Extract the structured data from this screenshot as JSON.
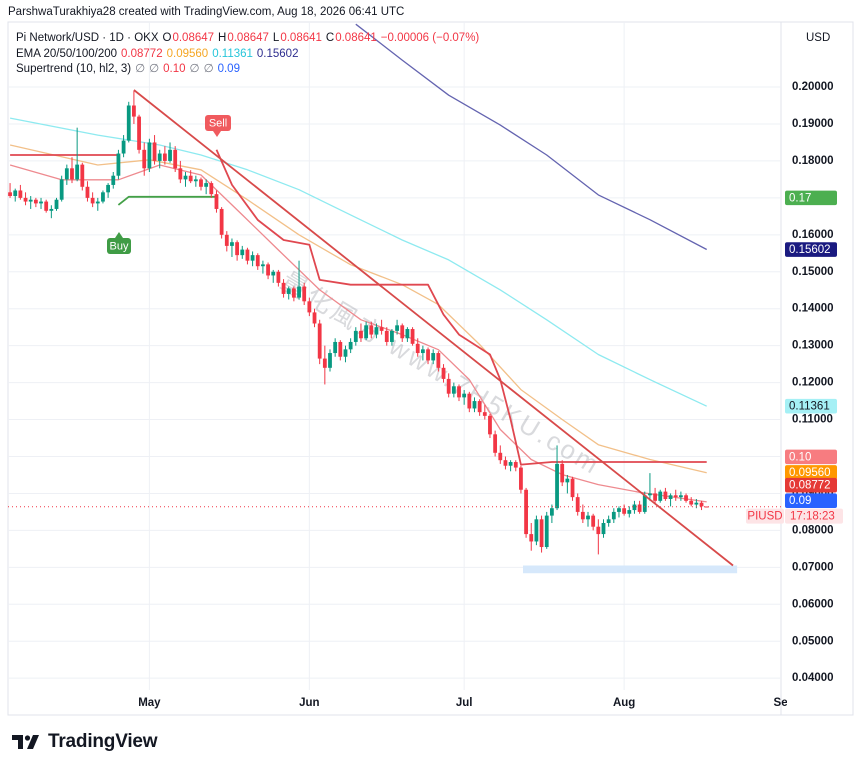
{
  "credit": "ParshwaTurakhiya28 created with TradingView.com, Aug 18, 2026 06:41 UTC",
  "brand": "TradingView",
  "chart_data": {
    "type": "candlestick",
    "symbol": "Pi Network/USD · 1D · OKX",
    "ohlc_keys": [
      "O",
      "H",
      "L",
      "C"
    ],
    "change": "−0.00006 (−0.07%)",
    "currency": "USD",
    "up_color": "#089981",
    "down_color": "#f23645",
    "ohlc": [
      [
        0.1715,
        0.174,
        0.17,
        0.1705
      ],
      [
        0.1705,
        0.1725,
        0.169,
        0.172
      ],
      [
        0.172,
        0.1735,
        0.1695,
        0.17
      ],
      [
        0.17,
        0.1715,
        0.168,
        0.169
      ],
      [
        0.169,
        0.1705,
        0.167,
        0.1695
      ],
      [
        0.1695,
        0.17,
        0.1675,
        0.1685
      ],
      [
        0.1685,
        0.17,
        0.167,
        0.169
      ],
      [
        0.169,
        0.1695,
        0.166,
        0.1665
      ],
      [
        0.1665,
        0.168,
        0.1645,
        0.167
      ],
      [
        0.167,
        0.17,
        0.1665,
        0.1695
      ],
      [
        0.1695,
        0.176,
        0.169,
        0.175
      ],
      [
        0.175,
        0.179,
        0.1735,
        0.178
      ],
      [
        0.178,
        0.181,
        0.174,
        0.175
      ],
      [
        0.175,
        0.189,
        0.1745,
        0.179
      ],
      [
        0.179,
        0.1795,
        0.172,
        0.173
      ],
      [
        0.173,
        0.1745,
        0.169,
        0.17
      ],
      [
        0.17,
        0.1715,
        0.1675,
        0.1685
      ],
      [
        0.1685,
        0.17,
        0.1665,
        0.169
      ],
      [
        0.169,
        0.172,
        0.1685,
        0.1715
      ],
      [
        0.1715,
        0.174,
        0.17,
        0.1735
      ],
      [
        0.1735,
        0.177,
        0.1725,
        0.176
      ],
      [
        0.176,
        0.183,
        0.175,
        0.182
      ],
      [
        0.182,
        0.187,
        0.181,
        0.1855
      ],
      [
        0.1855,
        0.196,
        0.185,
        0.195
      ],
      [
        0.195,
        0.199,
        0.19,
        0.192
      ],
      [
        0.192,
        0.1925,
        0.182,
        0.183
      ],
      [
        0.183,
        0.185,
        0.176,
        0.178
      ],
      [
        0.178,
        0.186,
        0.177,
        0.185
      ],
      [
        0.185,
        0.187,
        0.179,
        0.18
      ],
      [
        0.18,
        0.183,
        0.178,
        0.182
      ],
      [
        0.182,
        0.184,
        0.179,
        0.18
      ],
      [
        0.18,
        0.185,
        0.1795,
        0.183
      ],
      [
        0.183,
        0.184,
        0.177,
        0.178
      ],
      [
        0.178,
        0.18,
        0.174,
        0.175
      ],
      [
        0.175,
        0.177,
        0.173,
        0.176
      ],
      [
        0.176,
        0.1775,
        0.174,
        0.1745
      ],
      [
        0.1745,
        0.176,
        0.173,
        0.175
      ],
      [
        0.175,
        0.1755,
        0.172,
        0.173
      ],
      [
        0.173,
        0.175,
        0.171,
        0.174
      ],
      [
        0.174,
        0.1745,
        0.17,
        0.171
      ],
      [
        0.171,
        0.172,
        0.166,
        0.167
      ],
      [
        0.167,
        0.1675,
        0.159,
        0.16
      ],
      [
        0.16,
        0.161,
        0.1555,
        0.157
      ],
      [
        0.157,
        0.159,
        0.154,
        0.158
      ],
      [
        0.158,
        0.1585,
        0.153,
        0.1545
      ],
      [
        0.1545,
        0.157,
        0.1535,
        0.156
      ],
      [
        0.156,
        0.1565,
        0.152,
        0.153
      ],
      [
        0.153,
        0.1555,
        0.1515,
        0.1545
      ],
      [
        0.1545,
        0.155,
        0.1505,
        0.1515
      ],
      [
        0.1515,
        0.153,
        0.1495,
        0.152
      ],
      [
        0.152,
        0.1525,
        0.148,
        0.149
      ],
      [
        0.149,
        0.1505,
        0.147,
        0.15
      ],
      [
        0.15,
        0.1505,
        0.146,
        0.147
      ],
      [
        0.147,
        0.148,
        0.143,
        0.144
      ],
      [
        0.144,
        0.146,
        0.1425,
        0.1455
      ],
      [
        0.1455,
        0.146,
        0.142,
        0.143
      ],
      [
        0.143,
        0.153,
        0.1425,
        0.146
      ],
      [
        0.146,
        0.147,
        0.141,
        0.142
      ],
      [
        0.142,
        0.143,
        0.138,
        0.139
      ],
      [
        0.139,
        0.14,
        0.135,
        0.136
      ],
      [
        0.136,
        0.137,
        0.125,
        0.1265
      ],
      [
        0.1265,
        0.13,
        0.1195,
        0.124
      ],
      [
        0.124,
        0.129,
        0.123,
        0.128
      ],
      [
        0.128,
        0.132,
        0.127,
        0.131
      ],
      [
        0.131,
        0.1315,
        0.126,
        0.127
      ],
      [
        0.127,
        0.13,
        0.1255,
        0.129
      ],
      [
        0.129,
        0.132,
        0.128,
        0.131
      ],
      [
        0.131,
        0.135,
        0.13,
        0.134
      ],
      [
        0.134,
        0.136,
        0.131,
        0.132
      ],
      [
        0.132,
        0.1365,
        0.1315,
        0.1355
      ],
      [
        0.1355,
        0.1365,
        0.132,
        0.133
      ],
      [
        0.133,
        0.136,
        0.132,
        0.135
      ],
      [
        0.135,
        0.137,
        0.133,
        0.134
      ],
      [
        0.134,
        0.135,
        0.13,
        0.131
      ],
      [
        0.131,
        0.1345,
        0.13,
        0.134
      ],
      [
        0.134,
        0.137,
        0.133,
        0.1355
      ],
      [
        0.1355,
        0.136,
        0.131,
        0.132
      ],
      [
        0.132,
        0.135,
        0.131,
        0.1345
      ],
      [
        0.1345,
        0.135,
        0.13,
        0.1305
      ],
      [
        0.1305,
        0.132,
        0.127,
        0.128
      ],
      [
        0.128,
        0.13,
        0.126,
        0.129
      ],
      [
        0.129,
        0.1295,
        0.125,
        0.126
      ],
      [
        0.126,
        0.129,
        0.125,
        0.128
      ],
      [
        0.128,
        0.1285,
        0.123,
        0.124
      ],
      [
        0.124,
        0.125,
        0.12,
        0.121
      ],
      [
        0.121,
        0.1225,
        0.116,
        0.117
      ],
      [
        0.117,
        0.12,
        0.116,
        0.119
      ],
      [
        0.119,
        0.1195,
        0.115,
        0.116
      ],
      [
        0.116,
        0.118,
        0.114,
        0.117
      ],
      [
        0.117,
        0.1175,
        0.112,
        0.113
      ],
      [
        0.113,
        0.116,
        0.112,
        0.115
      ],
      [
        0.115,
        0.1155,
        0.111,
        0.112
      ],
      [
        0.112,
        0.114,
        0.11,
        0.111
      ],
      [
        0.111,
        0.1115,
        0.105,
        0.106
      ],
      [
        0.106,
        0.107,
        0.1,
        0.101
      ],
      [
        0.101,
        0.103,
        0.098,
        0.099
      ],
      [
        0.099,
        0.1,
        0.0965,
        0.0975
      ],
      [
        0.0975,
        0.099,
        0.096,
        0.0985
      ],
      [
        0.0985,
        0.099,
        0.096,
        0.097
      ],
      [
        0.097,
        0.0975,
        0.09,
        0.091
      ],
      [
        0.091,
        0.0915,
        0.078,
        0.079
      ],
      [
        0.079,
        0.082,
        0.0745,
        0.077
      ],
      [
        0.077,
        0.084,
        0.076,
        0.083
      ],
      [
        0.083,
        0.084,
        0.074,
        0.0755
      ],
      [
        0.0755,
        0.085,
        0.075,
        0.084
      ],
      [
        0.084,
        0.087,
        0.082,
        0.086
      ],
      [
        0.086,
        0.103,
        0.0855,
        0.098
      ],
      [
        0.098,
        0.099,
        0.092,
        0.093
      ],
      [
        0.093,
        0.095,
        0.09,
        0.094
      ],
      [
        0.094,
        0.0945,
        0.088,
        0.089
      ],
      [
        0.089,
        0.09,
        0.084,
        0.085
      ],
      [
        0.085,
        0.087,
        0.082,
        0.083
      ],
      [
        0.083,
        0.085,
        0.081,
        0.084
      ],
      [
        0.084,
        0.0845,
        0.08,
        0.081
      ],
      [
        0.081,
        0.083,
        0.0735,
        0.079
      ],
      [
        0.079,
        0.083,
        0.078,
        0.082
      ],
      [
        0.082,
        0.084,
        0.081,
        0.083
      ],
      [
        0.083,
        0.086,
        0.082,
        0.085
      ],
      [
        0.085,
        0.0865,
        0.0835,
        0.086
      ],
      [
        0.086,
        0.087,
        0.084,
        0.0845
      ],
      [
        0.0845,
        0.0865,
        0.0835,
        0.0855
      ],
      [
        0.0855,
        0.088,
        0.0845,
        0.087
      ],
      [
        0.087,
        0.088,
        0.0845,
        0.085
      ],
      [
        0.085,
        0.0905,
        0.0845,
        0.0895
      ],
      [
        0.0895,
        0.0955,
        0.088,
        0.09
      ],
      [
        0.09,
        0.0915,
        0.087,
        0.088
      ],
      [
        0.088,
        0.091,
        0.0875,
        0.0905
      ],
      [
        0.0905,
        0.0915,
        0.088,
        0.0885
      ],
      [
        0.0885,
        0.09,
        0.0865,
        0.0895
      ],
      [
        0.0895,
        0.091,
        0.088,
        0.089
      ],
      [
        0.089,
        0.0905,
        0.088,
        0.0895
      ],
      [
        0.0895,
        0.09,
        0.0875,
        0.088
      ],
      [
        0.088,
        0.089,
        0.0865,
        0.087
      ],
      [
        0.087,
        0.0885,
        0.086,
        0.0875
      ],
      [
        0.0875,
        0.088,
        0.0855,
        0.0865
      ],
      [
        0.08647,
        0.08647,
        0.08641,
        0.08641
      ]
    ],
    "xlim": [
      -0.4,
      149.4
    ],
    "xticks": [
      {
        "value": 27,
        "label": "May"
      },
      {
        "value": 58,
        "label": "Jun"
      },
      {
        "value": 88,
        "label": "Jul"
      },
      {
        "value": 119,
        "label": "Aug"
      },
      {
        "value": 150,
        "label": "Sep"
      }
    ],
    "ylim": [
      0.0368,
      0.2176
    ],
    "yticks": [
      {
        "value": 0.2,
        "label": "0.20000"
      },
      {
        "value": 0.19,
        "label": "0.19000"
      },
      {
        "value": 0.18,
        "label": "0.18000"
      },
      {
        "value": 0.17,
        "label": "0.17000"
      },
      {
        "value": 0.16,
        "label": "0.16000"
      },
      {
        "value": 0.15,
        "label": "0.15000"
      },
      {
        "value": 0.14,
        "label": "0.14000"
      },
      {
        "value": 0.13,
        "label": "0.13000"
      },
      {
        "value": 0.12,
        "label": "0.12000"
      },
      {
        "value": 0.11,
        "label": "0.11000"
      },
      {
        "value": 0.1,
        "label": "0.10000"
      },
      {
        "value": 0.09,
        "label": "0.09000"
      },
      {
        "value": 0.08,
        "label": "0.08000"
      },
      {
        "value": 0.07,
        "label": "0.07000"
      },
      {
        "value": 0.06,
        "label": "0.06000"
      },
      {
        "value": 0.05,
        "label": "0.05000"
      },
      {
        "value": 0.04,
        "label": "0.04000"
      }
    ],
    "grid": true,
    "indicators": {
      "ema_title": "EMA 20/50/100/200",
      "ema": [
        {
          "label": "0.08772",
          "color": "#f23645",
          "line_color": "#ee8a8f",
          "x": [
            0,
            10,
            21,
            29,
            37,
            45,
            52,
            60,
            68,
            76,
            83,
            89,
            95,
            101,
            107,
            114,
            122,
            135
          ],
          "values": [
            0.1789,
            0.1749,
            0.1749,
            0.1789,
            0.1762,
            0.1654,
            0.1559,
            0.1451,
            0.137,
            0.133,
            0.1289,
            0.1208,
            0.1073,
            0.0992,
            0.0951,
            0.0924,
            0.0903,
            0.08772
          ]
        },
        {
          "label": "0.09560",
          "color": "#f5a623",
          "line_color": "#f2c089",
          "x": [
            0,
            17,
            27,
            37,
            46,
            56,
            66,
            76,
            83,
            91,
            99,
            107,
            114,
            124,
            135
          ],
          "values": [
            0.1843,
            0.1789,
            0.1803,
            0.1776,
            0.1695,
            0.16,
            0.1519,
            0.1465,
            0.1411,
            0.1303,
            0.1181,
            0.11,
            0.1032,
            0.0992,
            0.0956
          ]
        },
        {
          "label": "0.11361",
          "color": "#26c6da",
          "line_color": "#8eeaf0",
          "x": [
            0,
            17,
            29,
            37,
            46,
            56,
            66,
            76,
            85,
            95,
            104,
            114,
            124,
            135
          ],
          "values": [
            0.1916,
            0.187,
            0.1843,
            0.1816,
            0.1776,
            0.1722,
            0.1654,
            0.1586,
            0.1532,
            0.1451,
            0.137,
            0.1276,
            0.1208,
            0.11361
          ]
        },
        {
          "label": "0.15602",
          "color": "#2e2e8f",
          "line_color": "#6464b0",
          "x": [
            67,
            76,
            85,
            95,
            104,
            114,
            124,
            135
          ],
          "values": [
            0.217,
            0.2073,
            0.1978,
            0.1897,
            0.1816,
            0.1708,
            0.1641,
            0.15602
          ]
        }
      ],
      "supertrend_title": "Supertrend (10, hl2, 3)",
      "supertrend_labels": [
        {
          "text": "∅",
          "color": "#787b86"
        },
        {
          "text": "∅",
          "color": "#787b86"
        },
        {
          "text": "0.10",
          "color": "#f23645"
        },
        {
          "text": "∅",
          "color": "#787b86"
        },
        {
          "text": "∅",
          "color": "#787b86"
        },
        {
          "text": "0.09",
          "color": "#2962ff"
        }
      ],
      "supertrend": [
        {
          "color": "#e04850",
          "x": [
            0,
            21,
            30,
            40,
            43,
            48,
            53,
            58,
            60,
            66,
            81,
            84,
            87,
            93,
            95,
            97,
            99,
            105,
            135
          ],
          "values": [
            0.1816,
            0.1816,
            null,
            0.183,
            0.1735,
            0.164,
            0.1586,
            0.1573,
            0.1478,
            0.1465,
            0.1465,
            0.1384,
            0.133,
            0.1276,
            0.1208,
            0.11,
            0.0978,
            0.0985,
            0.0985
          ]
        },
        {
          "color": "#43a047",
          "x": [
            21,
            23,
            40
          ],
          "values": [
            0.1681,
            0.1703,
            0.1703
          ]
        }
      ]
    },
    "trendline": {
      "color": "#d84a4a",
      "x": [
        24,
        140.1
      ],
      "values": [
        0.1992,
        0.0705
      ]
    },
    "zone": {
      "color": "#d6e8fb",
      "x": [
        99.4,
        140.9
      ],
      "values": [
        0.0705,
        0.0684
      ]
    },
    "badges": [
      {
        "value": 0.17,
        "label": "0.17",
        "color": "#4caf50",
        "text_color": "#ffffff"
      },
      {
        "value": 0.15602,
        "label": "0.15602",
        "color": "#1a1a80",
        "text_color": "#ffffff"
      },
      {
        "value": 0.11361,
        "label": "0.11361",
        "color": "#a5f0f5",
        "text_color": "#131722"
      },
      {
        "value": 0.1,
        "label": "0.10",
        "color": "#f77c80",
        "text_color": "#ffffff"
      },
      {
        "value": 0.0956,
        "label": "0.09560",
        "color": "#ff9800",
        "text_color": "#ffffff"
      },
      {
        "value": 0.08772,
        "label": "0.08772",
        "color": "#e53935",
        "text_color": "#ffffff"
      },
      {
        "value": 0.09,
        "label": "0.09",
        "color": "#2962ff",
        "text_color": "#ffffff"
      }
    ],
    "price_badge": {
      "symbol": "PIUSD",
      "countdown": "17:18:23",
      "color": "#f23645",
      "fill": "#fde4e6"
    },
    "signals": [
      {
        "label": "Sell",
        "color": "#f05a5e"
      },
      {
        "label": "Buy",
        "color": "#3f9c45"
      }
    ],
    "watermark": "量化風方 www.7H5KU.com"
  }
}
